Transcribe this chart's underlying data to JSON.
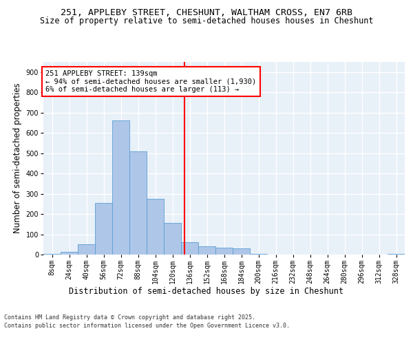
{
  "title_line1": "251, APPLEBY STREET, CHESHUNT, WALTHAM CROSS, EN7 6RB",
  "title_line2": "Size of property relative to semi-detached houses houses in Cheshunt",
  "xlabel": "Distribution of semi-detached houses by size in Cheshunt",
  "ylabel": "Number of semi-detached properties",
  "bin_labels": [
    "8sqm",
    "24sqm",
    "40sqm",
    "56sqm",
    "72sqm",
    "88sqm",
    "104sqm",
    "120sqm",
    "136sqm",
    "152sqm",
    "168sqm",
    "184sqm",
    "200sqm",
    "216sqm",
    "232sqm",
    "248sqm",
    "264sqm",
    "280sqm",
    "296sqm",
    "312sqm",
    "328sqm"
  ],
  "bin_edges": [
    8,
    24,
    40,
    56,
    72,
    88,
    104,
    120,
    136,
    152,
    168,
    184,
    200,
    216,
    232,
    248,
    264,
    280,
    296,
    312,
    328,
    344
  ],
  "bar_values": [
    5,
    15,
    50,
    255,
    660,
    510,
    275,
    155,
    60,
    40,
    35,
    30,
    5,
    0,
    0,
    0,
    0,
    0,
    0,
    0,
    5
  ],
  "bar_color": "#aec6e8",
  "bar_edge_color": "#5a9fd4",
  "property_size": 139,
  "property_line_color": "red",
  "annotation_text": "251 APPLEBY STREET: 139sqm\n← 94% of semi-detached houses are smaller (1,930)\n6% of semi-detached houses are larger (113) →",
  "annotation_box_color": "white",
  "annotation_box_edge_color": "red",
  "ylim": [
    0,
    950
  ],
  "yticks": [
    0,
    100,
    200,
    300,
    400,
    500,
    600,
    700,
    800,
    900
  ],
  "background_color": "#e8f0f8",
  "grid_color": "white",
  "footer_line1": "Contains HM Land Registry data © Crown copyright and database right 2025.",
  "footer_line2": "Contains public sector information licensed under the Open Government Licence v3.0.",
  "title_fontsize": 9.5,
  "subtitle_fontsize": 8.5,
  "axis_label_fontsize": 8.5,
  "tick_fontsize": 7,
  "annotation_fontsize": 7.5,
  "footer_fontsize": 6
}
